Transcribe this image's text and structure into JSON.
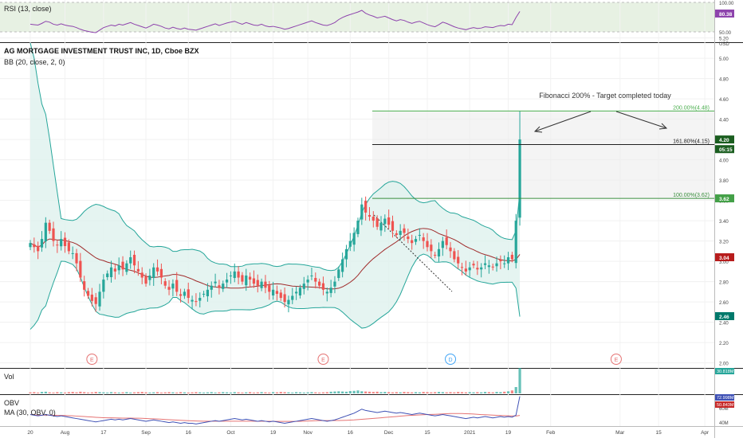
{
  "colors": {
    "up": "#26a69a",
    "down": "#ef5350",
    "bb_band": "#26a69a",
    "bb_basis": "#a02c2c",
    "bb_fill": "#dff1ee",
    "rsi": "#8e44ad",
    "rsi_zone": "#e7f1e3",
    "obv": "#3f51b5",
    "obv_ma": "#e57373",
    "fib_200": "#4caf50",
    "fib_161": "#212121",
    "fib_100": "#388e3c",
    "earnings": "#e57373",
    "dividend": "#42a5f5"
  },
  "header": {
    "title": "AG MORTGAGE INVESTMENT TRUST INC, 1D, Cboe BZX",
    "bb_label": "BB (20, close, 2, 0)"
  },
  "rsi_panel": {
    "label": "RSI (13, close)",
    "ticks": [
      "100.00",
      "50.00"
    ],
    "current": "80.38"
  },
  "vol_panel": {
    "label": "Vol",
    "current": "30.818M"
  },
  "obv_panel": {
    "label": "OBV",
    "ma_label": "MA (30, OBV, 0)",
    "ticks": [
      "60M",
      "40M"
    ],
    "current_obv": "72.998M",
    "current_ma": "50.843M"
  },
  "annotation": {
    "text": "Fibonacci 200% - Target completed today"
  },
  "chart_data": {
    "type": "candlestick",
    "price_axis": {
      "unit": "USD",
      "ticks": [
        "5.20",
        "5.00",
        "4.80",
        "4.60",
        "4.40",
        "4.20",
        "4.00",
        "3.80",
        "3.60",
        "3.40",
        "3.20",
        "3.00",
        "2.80",
        "2.60",
        "2.40",
        "2.20",
        "2.00"
      ],
      "ylim": [
        1.95,
        5.15
      ],
      "markers": [
        {
          "label": "4.20",
          "value": 4.2,
          "color": "#1b5e20"
        },
        {
          "label": "05:15",
          "value": 4.105,
          "color": "#1b5e20"
        },
        {
          "label": "3.62",
          "value": 3.62,
          "color": "#43a047"
        },
        {
          "label": "3.04",
          "value": 3.04,
          "color": "#b71c1c"
        },
        {
          "label": "2.46",
          "value": 2.46,
          "color": "#00796b"
        }
      ]
    },
    "x_axis": {
      "ticks": [
        {
          "label": "20",
          "bar": 0
        },
        {
          "label": "Aug",
          "bar": 9
        },
        {
          "label": "17",
          "bar": 19
        },
        {
          "label": "Sep",
          "bar": 30
        },
        {
          "label": "16",
          "bar": 41
        },
        {
          "label": "Oct",
          "bar": 52
        },
        {
          "label": "19",
          "bar": 63
        },
        {
          "label": "Nov",
          "bar": 72
        },
        {
          "label": "16",
          "bar": 83
        },
        {
          "label": "Dec",
          "bar": 93
        },
        {
          "label": "15",
          "bar": 103
        },
        {
          "label": "2021",
          "bar": 114
        },
        {
          "label": "19",
          "bar": 124
        },
        {
          "label": "Feb",
          "bar": 135
        },
        {
          "label": "Mar",
          "bar": 153
        },
        {
          "label": "15",
          "bar": 163
        },
        {
          "label": "Apr",
          "bar": 175
        }
      ]
    },
    "fibonacci": [
      {
        "label": "200.00%(4.48)",
        "value": 4.48
      },
      {
        "label": "161.80%(4.15)",
        "value": 4.15
      },
      {
        "label": "100.00%(3.62)",
        "value": 3.62
      }
    ],
    "events": [
      {
        "label": "E",
        "bar": 16,
        "kind": "earnings"
      },
      {
        "label": "E",
        "bar": 76,
        "kind": "earnings"
      },
      {
        "label": "D",
        "bar": 109,
        "kind": "dividend"
      },
      {
        "label": "E",
        "bar": 152,
        "kind": "earnings"
      }
    ],
    "close": [
      3.18,
      3.14,
      3.1,
      3.22,
      3.38,
      3.3,
      3.2,
      3.16,
      3.22,
      3.15,
      3.1,
      3.08,
      2.98,
      2.84,
      2.72,
      2.66,
      2.61,
      2.58,
      2.7,
      2.82,
      2.88,
      2.94,
      2.9,
      2.96,
      2.92,
      2.98,
      3.04,
      2.96,
      2.9,
      2.84,
      2.78,
      2.86,
      2.94,
      2.9,
      2.84,
      2.76,
      2.72,
      2.78,
      2.7,
      2.66,
      2.7,
      2.64,
      2.62,
      2.6,
      2.64,
      2.68,
      2.72,
      2.76,
      2.8,
      2.74,
      2.78,
      2.82,
      2.86,
      2.9,
      2.84,
      2.8,
      2.86,
      2.82,
      2.78,
      2.76,
      2.8,
      2.74,
      2.7,
      2.72,
      2.68,
      2.64,
      2.6,
      2.62,
      2.66,
      2.7,
      2.74,
      2.78,
      2.82,
      2.86,
      2.8,
      2.76,
      2.72,
      2.7,
      2.74,
      2.8,
      2.92,
      3.02,
      3.12,
      3.2,
      3.28,
      3.4,
      3.56,
      3.48,
      3.44,
      3.4,
      3.34,
      3.38,
      3.42,
      3.36,
      3.3,
      3.26,
      3.3,
      3.28,
      3.22,
      3.18,
      3.22,
      3.26,
      3.2,
      3.14,
      3.1,
      3.06,
      3.12,
      3.2,
      3.16,
      3.1,
      3.02,
      2.98,
      2.94,
      2.9,
      2.94,
      2.96,
      2.92,
      2.94,
      2.98,
      2.96,
      2.94,
      2.98,
      3.0,
      2.98,
      3.04,
      3.02,
      3.4,
      4.2
    ],
    "volume": [
      0.5,
      0.6,
      0.4,
      0.7,
      0.8,
      0.5,
      0.4,
      0.6,
      0.5,
      0.4,
      0.6,
      0.7,
      0.5,
      0.8,
      0.6,
      0.4,
      0.5,
      0.7,
      0.6,
      0.5,
      0.4,
      0.6,
      0.5,
      0.4,
      0.5,
      0.6,
      0.4,
      0.5,
      0.6,
      0.7,
      0.5,
      0.4,
      0.5,
      0.6,
      0.4,
      0.5,
      0.6,
      0.5,
      0.4,
      0.6,
      0.5,
      0.4,
      0.5,
      0.6,
      0.5,
      0.4,
      0.5,
      0.6,
      0.4,
      0.5,
      0.6,
      0.5,
      0.4,
      0.6,
      0.5,
      0.4,
      0.5,
      0.6,
      0.4,
      0.5,
      0.6,
      0.5,
      0.4,
      0.6,
      0.5,
      0.7,
      0.6,
      0.5,
      0.4,
      0.6,
      0.5,
      0.4,
      0.5,
      0.6,
      0.5,
      0.4,
      0.5,
      0.6,
      0.8,
      0.9,
      1.0,
      0.9,
      0.8,
      1.1,
      1.2,
      1.4,
      1.0,
      0.9,
      0.8,
      0.7,
      0.8,
      0.6,
      0.7,
      0.6,
      0.5,
      0.6,
      0.5,
      0.7,
      0.6,
      0.5,
      0.6,
      0.5,
      0.7,
      0.6,
      0.5,
      0.6,
      0.7,
      0.6,
      0.5,
      0.6,
      0.5,
      0.7,
      0.6,
      0.5,
      0.6,
      0.5,
      0.6,
      0.5,
      0.7,
      0.6,
      0.5,
      0.7,
      0.6,
      0.8,
      1.0,
      1.4,
      3.0,
      12.0
    ],
    "rsi": [
      50,
      49,
      48,
      52,
      57,
      55,
      50,
      48,
      51,
      48,
      46,
      45,
      42,
      38,
      35,
      33,
      31,
      30,
      36,
      42,
      45,
      48,
      46,
      50,
      48,
      51,
      54,
      50,
      47,
      44,
      41,
      45,
      50,
      48,
      45,
      41,
      39,
      43,
      40,
      38,
      41,
      38,
      37,
      36,
      39,
      42,
      45,
      48,
      51,
      47,
      50,
      53,
      55,
      57,
      53,
      50,
      54,
      51,
      48,
      47,
      50,
      46,
      44,
      45,
      43,
      41,
      38,
      40,
      43,
      46,
      49,
      52,
      55,
      58,
      54,
      51,
      48,
      47,
      50,
      54,
      61,
      66,
      70,
      73,
      76,
      79,
      83,
      76,
      72,
      69,
      65,
      67,
      69,
      65,
      61,
      58,
      61,
      59,
      55,
      52,
      55,
      57,
      53,
      49,
      46,
      44,
      49,
      55,
      52,
      48,
      44,
      41,
      39,
      37,
      40,
      42,
      40,
      41,
      44,
      43,
      42,
      45,
      47,
      46,
      50,
      49,
      66,
      80.38
    ],
    "obv": [
      46,
      45,
      44,
      45,
      46,
      45,
      44,
      43,
      44,
      43,
      42,
      41,
      40,
      39,
      38,
      37,
      36,
      35,
      36,
      37,
      38,
      39,
      38,
      39,
      38,
      39,
      40,
      39,
      38,
      37,
      36,
      37,
      38,
      37,
      36,
      35,
      34,
      35,
      34,
      33,
      34,
      33,
      33,
      32,
      33,
      34,
      35,
      36,
      37,
      36,
      37,
      38,
      39,
      40,
      39,
      38,
      39,
      38,
      37,
      36,
      37,
      36,
      35,
      36,
      35,
      34,
      33,
      34,
      35,
      36,
      37,
      38,
      39,
      40,
      39,
      38,
      37,
      36,
      37,
      38,
      40,
      42,
      44,
      46,
      48,
      51,
      54,
      52,
      51,
      50,
      49,
      50,
      51,
      50,
      49,
      48,
      49,
      48,
      47,
      46,
      47,
      48,
      47,
      46,
      45,
      44,
      45,
      46,
      45,
      44,
      43,
      42,
      41,
      40,
      41,
      42,
      41,
      42,
      43,
      42,
      41,
      42,
      43,
      42,
      43,
      42,
      45,
      72.998
    ]
  }
}
